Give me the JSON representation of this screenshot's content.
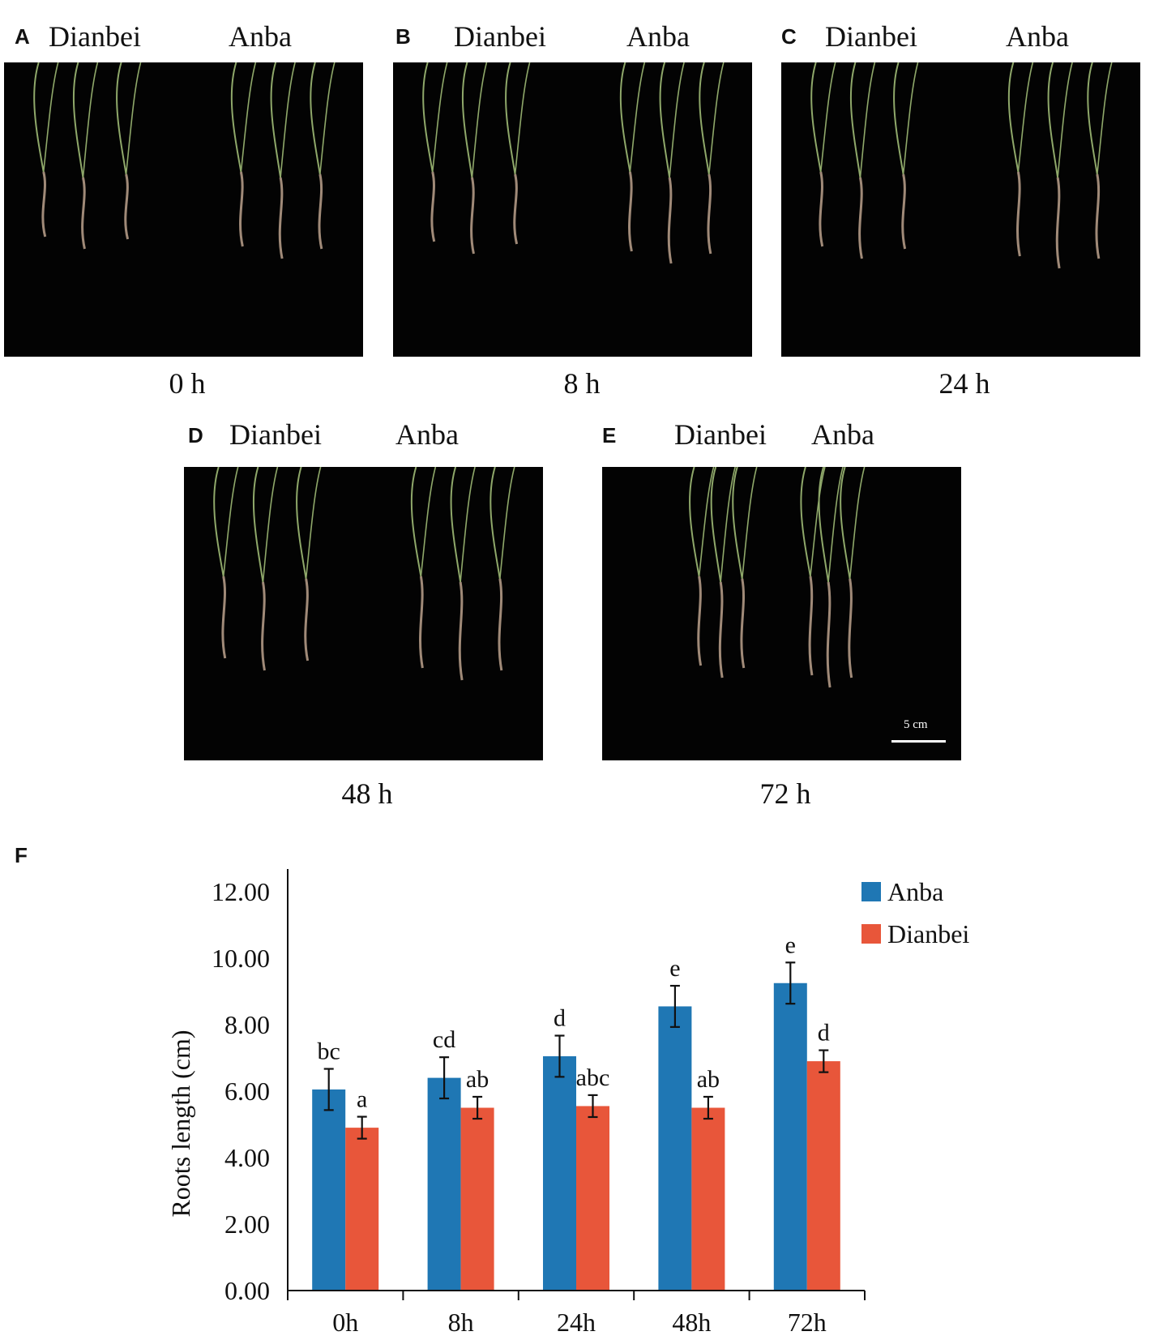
{
  "panels": [
    {
      "letter": "A",
      "left_label": "Dianbei",
      "right_label": "Anba",
      "time": "0 h"
    },
    {
      "letter": "B",
      "left_label": "Dianbei",
      "right_label": "Anba",
      "time": "8 h"
    },
    {
      "letter": "C",
      "left_label": "Dianbei",
      "right_label": "Anba",
      "time": "24 h"
    },
    {
      "letter": "D",
      "left_label": "Dianbei",
      "right_label": "Anba",
      "time": "48 h"
    },
    {
      "letter": "E",
      "left_label": "Dianbei",
      "right_label": "Anba",
      "time": "72 h"
    }
  ],
  "scale_bar_label": "5 cm",
  "panel_f_letter": "F",
  "colors": {
    "anba": "#1f77b4",
    "dianbei": "#e8563a",
    "photo_bg": "#030303",
    "shoot": "#8fa86a",
    "root": "#a08a78"
  },
  "chart_data": {
    "type": "bar",
    "categories": [
      "0h",
      "8h",
      "24h",
      "48h",
      "72h"
    ],
    "ylabel": "Roots length (cm)",
    "ylim": [
      0,
      12
    ],
    "yticks": [
      "0.00",
      "2.00",
      "4.00",
      "6.00",
      "8.00",
      "10.00",
      "12.00"
    ],
    "legend_position": "top-right",
    "series": [
      {
        "name": "Anba",
        "values": [
          6.05,
          6.4,
          7.05,
          8.55,
          9.25
        ],
        "errors": [
          0.62,
          0.62,
          0.62,
          0.62,
          0.62
        ],
        "letters": [
          "bc",
          "cd",
          "d",
          "e",
          "e"
        ]
      },
      {
        "name": "Dianbei",
        "values": [
          4.9,
          5.5,
          5.55,
          5.5,
          6.9
        ],
        "errors": [
          0.33,
          0.33,
          0.33,
          0.33,
          0.33
        ],
        "letters": [
          "a",
          "ab",
          "abc",
          "ab",
          "d"
        ]
      }
    ]
  }
}
